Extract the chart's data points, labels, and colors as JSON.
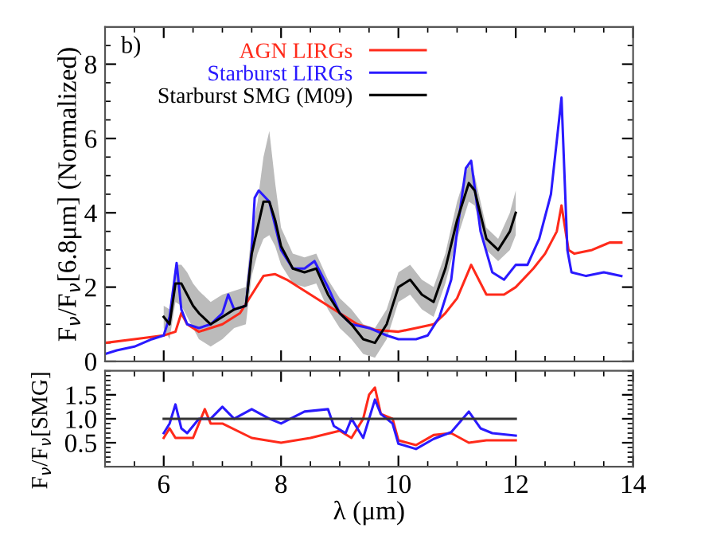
{
  "chart_data": [
    {
      "type": "line",
      "ylabel": "F$_{ν}$/F$_{ν}$[6.8μm] (Normalized)",
      "annotations": [
        "b)"
      ],
      "xlim": [
        5,
        14
      ],
      "ylim": [
        0,
        9
      ],
      "xticks": [
        6,
        8,
        10,
        12,
        14
      ],
      "yticks": [
        0,
        2,
        4,
        6,
        8
      ],
      "tick_labels": "y",
      "legend": "top left",
      "grid": false,
      "line_style": "solid",
      "marker": "none",
      "series": [
        {
          "name": "AGN LIRGs",
          "color": "#ff2a1a",
          "x": [
            5.0,
            5.5,
            6.0,
            6.2,
            6.3,
            6.4,
            6.6,
            7.0,
            7.3,
            7.5,
            7.7,
            7.9,
            8.1,
            8.4,
            8.7,
            9.0,
            9.3,
            9.6,
            10.0,
            10.3,
            10.6,
            10.8,
            11.0,
            11.24,
            11.5,
            11.8,
            12.0,
            12.3,
            12.5,
            12.7,
            12.78,
            12.9,
            13.0,
            13.3,
            13.6,
            13.8
          ],
          "values": [
            0.5,
            0.6,
            0.7,
            0.8,
            1.3,
            1.0,
            0.8,
            1.0,
            1.3,
            1.8,
            2.3,
            2.35,
            2.2,
            1.9,
            1.6,
            1.3,
            1.0,
            0.85,
            0.8,
            0.9,
            1.0,
            1.3,
            1.7,
            2.6,
            1.8,
            1.8,
            2.0,
            2.5,
            2.9,
            3.5,
            4.2,
            3.0,
            2.9,
            3.0,
            3.2,
            3.2
          ]
        },
        {
          "name": "Starburst LIRGs",
          "color": "#2a1aff",
          "x": [
            5.0,
            5.2,
            5.5,
            5.8,
            6.0,
            6.1,
            6.22,
            6.3,
            6.4,
            6.6,
            6.8,
            7.0,
            7.1,
            7.2,
            7.4,
            7.5,
            7.55,
            7.62,
            7.8,
            8.0,
            8.2,
            8.4,
            8.57,
            8.8,
            9.0,
            9.2,
            9.5,
            9.8,
            10.0,
            10.3,
            10.5,
            10.7,
            10.9,
            11.0,
            11.15,
            11.24,
            11.4,
            11.6,
            11.8,
            12.0,
            12.2,
            12.4,
            12.6,
            12.78,
            12.88,
            12.95,
            13.2,
            13.5,
            13.8
          ],
          "values": [
            0.2,
            0.3,
            0.4,
            0.6,
            0.7,
            1.2,
            2.65,
            1.4,
            1.0,
            0.9,
            1.0,
            1.3,
            1.8,
            1.4,
            1.5,
            3.0,
            4.4,
            4.6,
            4.3,
            3.0,
            2.5,
            2.5,
            2.7,
            2.0,
            1.3,
            1.0,
            0.9,
            0.7,
            0.6,
            0.6,
            0.7,
            1.2,
            2.2,
            3.5,
            5.2,
            5.4,
            3.5,
            2.4,
            2.2,
            2.6,
            2.6,
            3.3,
            4.5,
            7.1,
            3.0,
            2.4,
            2.3,
            2.4,
            2.3
          ]
        },
        {
          "name": "Starburst SMG (M09)",
          "color": "#000000",
          "x": [
            6.0,
            6.1,
            6.2,
            6.3,
            6.4,
            6.5,
            6.6,
            6.8,
            7.0,
            7.2,
            7.4,
            7.5,
            7.6,
            7.7,
            7.8,
            7.9,
            8.0,
            8.2,
            8.4,
            8.6,
            8.8,
            9.0,
            9.2,
            9.4,
            9.6,
            9.8,
            10.0,
            10.2,
            10.4,
            10.6,
            10.8,
            11.0,
            11.2,
            11.3,
            11.5,
            11.7,
            11.9,
            12.0
          ],
          "values": [
            1.2,
            1.0,
            2.1,
            2.1,
            1.8,
            1.5,
            1.3,
            1.0,
            1.2,
            1.4,
            1.5,
            2.9,
            3.6,
            4.3,
            4.3,
            3.8,
            3.1,
            2.5,
            2.4,
            2.5,
            1.8,
            1.3,
            1.0,
            0.6,
            0.5,
            1.0,
            2.0,
            2.2,
            1.8,
            1.6,
            2.5,
            3.8,
            4.8,
            4.6,
            3.3,
            3.0,
            3.5,
            4.0
          ],
          "lower": [
            0.9,
            0.6,
            1.6,
            1.5,
            1.2,
            0.9,
            0.6,
            0.4,
            0.6,
            0.9,
            1.0,
            2.3,
            2.9,
            3.3,
            3.4,
            3.1,
            2.6,
            2.1,
            2.0,
            2.1,
            1.4,
            0.9,
            0.6,
            0.2,
            0.1,
            0.6,
            1.6,
            1.8,
            1.4,
            1.2,
            2.1,
            3.3,
            4.3,
            4.2,
            3.0,
            2.7,
            3.0,
            3.4
          ],
          "upper": [
            1.5,
            1.4,
            2.6,
            2.6,
            2.4,
            2.1,
            1.9,
            1.6,
            1.8,
            1.9,
            2.0,
            3.5,
            4.3,
            5.5,
            6.2,
            4.8,
            3.6,
            2.9,
            2.8,
            2.9,
            2.2,
            1.7,
            1.4,
            1.0,
            0.9,
            1.4,
            2.4,
            2.6,
            2.2,
            2.0,
            2.9,
            4.3,
            5.3,
            5.0,
            3.6,
            3.3,
            4.0,
            4.6
          ]
        }
      ]
    },
    {
      "type": "line",
      "ylabel": "F$_{ν}$/F$_{ν}$[SMG]",
      "xlabel": "λ (μm)",
      "xlim": [
        5,
        14
      ],
      "ylim": [
        0,
        2
      ],
      "xticks": [
        6,
        8,
        10,
        12,
        14
      ],
      "yticks": [
        0.5,
        {
          "value": 1,
          "label": "1.0"
        },
        1.5
      ],
      "grid": false,
      "line_style": "solid",
      "marker": "none",
      "series": [
        {
          "color": "#ff2a1a",
          "x": [
            6.0,
            6.1,
            6.2,
            6.5,
            6.7,
            6.8,
            7.0,
            7.5,
            8.0,
            8.5,
            9.0,
            9.2,
            9.4,
            9.5,
            9.6,
            9.7,
            9.9,
            10.0,
            10.3,
            10.6,
            10.9,
            11.2,
            11.5,
            12.0
          ],
          "values": [
            0.6,
            0.8,
            0.6,
            0.6,
            1.2,
            0.9,
            0.9,
            0.6,
            0.5,
            0.6,
            0.75,
            0.6,
            1.0,
            1.5,
            1.65,
            1.1,
            1.0,
            0.55,
            0.45,
            0.66,
            0.7,
            0.5,
            0.55,
            0.55
          ]
        },
        {
          "color": "#2a1aff",
          "x": [
            6.0,
            6.1,
            6.2,
            6.3,
            6.4,
            6.6,
            6.8,
            7.0,
            7.2,
            7.5,
            7.8,
            8.0,
            8.4,
            8.8,
            8.9,
            9.1,
            9.2,
            9.4,
            9.6,
            9.7,
            9.9,
            10.0,
            10.3,
            10.6,
            10.9,
            11.2,
            11.4,
            11.6,
            12.0
          ],
          "values": [
            0.7,
            0.9,
            1.3,
            0.8,
            0.7,
            1.0,
            1.0,
            1.25,
            1.0,
            1.2,
            1.0,
            0.9,
            1.15,
            1.2,
            0.85,
            0.7,
            1.0,
            0.6,
            1.4,
            1.1,
            0.9,
            0.48,
            0.37,
            0.58,
            0.72,
            1.15,
            0.8,
            0.7,
            0.65
          ]
        },
        {
          "color": "#333333",
          "x": [
            6.0,
            12.0
          ],
          "values": [
            1.0,
            1.0
          ]
        }
      ]
    }
  ]
}
